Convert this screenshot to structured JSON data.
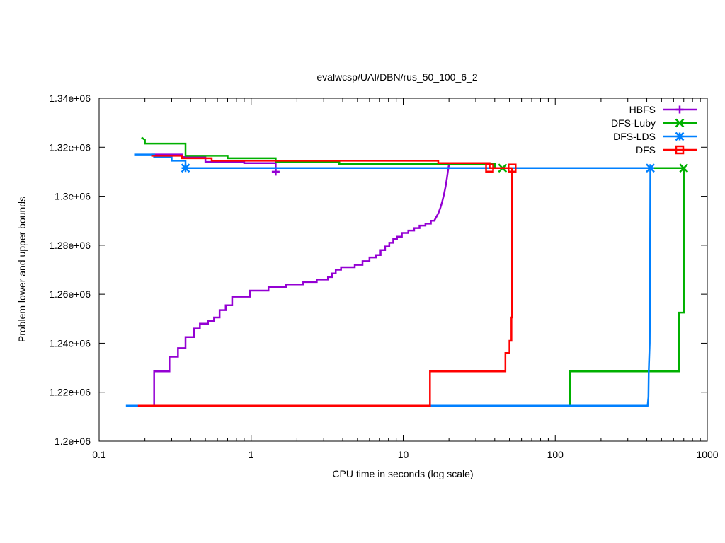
{
  "chart_data": {
    "type": "line",
    "title": "evalwcsp/UAI/DBN/rus_50_100_6_2",
    "xlabel": "CPU time in seconds (log scale)",
    "ylabel": "Problem lower and upper bounds",
    "xscale": "log",
    "xlim": [
      0.1,
      1000
    ],
    "ylim": [
      1200000,
      1340000
    ],
    "x_ticks": [
      0.1,
      1,
      10,
      100,
      1000
    ],
    "x_tick_labels": [
      "0.1",
      "1",
      "10",
      "100",
      "1000"
    ],
    "y_ticks": [
      1200000,
      1220000,
      1240000,
      1260000,
      1280000,
      1300000,
      1320000,
      1340000
    ],
    "y_tick_labels": [
      "1.2e+06",
      "1.22e+06",
      "1.24e+06",
      "1.26e+06",
      "1.28e+06",
      "1.3e+06",
      "1.32e+06",
      "1.34e+06"
    ],
    "grid": false,
    "legend_position": "top-right",
    "series": [
      {
        "name": "HBFS",
        "color": "#9400d3",
        "marker": "plus",
        "lower": [
          [
            0.175,
            1214500
          ],
          [
            0.23,
            1214500
          ],
          [
            0.23,
            1228500
          ],
          [
            0.29,
            1228500
          ],
          [
            0.29,
            1234500
          ],
          [
            0.33,
            1234500
          ],
          [
            0.33,
            1238000
          ],
          [
            0.37,
            1238000
          ],
          [
            0.37,
            1242500
          ],
          [
            0.42,
            1242500
          ],
          [
            0.42,
            1246000
          ],
          [
            0.46,
            1246000
          ],
          [
            0.46,
            1248000
          ],
          [
            0.52,
            1248000
          ],
          [
            0.52,
            1249000
          ],
          [
            0.57,
            1249000
          ],
          [
            0.57,
            1250500
          ],
          [
            0.62,
            1250500
          ],
          [
            0.62,
            1253500
          ],
          [
            0.68,
            1253500
          ],
          [
            0.68,
            1255500
          ],
          [
            0.75,
            1255500
          ],
          [
            0.75,
            1259000
          ],
          [
            0.98,
            1259000
          ],
          [
            0.98,
            1261500
          ],
          [
            1.3,
            1261500
          ],
          [
            1.3,
            1263000
          ],
          [
            1.7,
            1263000
          ],
          [
            1.7,
            1264000
          ],
          [
            2.2,
            1264000
          ],
          [
            2.2,
            1265000
          ],
          [
            2.7,
            1265000
          ],
          [
            2.7,
            1266000
          ],
          [
            3.2,
            1266000
          ],
          [
            3.2,
            1267000
          ],
          [
            3.4,
            1267000
          ],
          [
            3.4,
            1268500
          ],
          [
            3.6,
            1268500
          ],
          [
            3.6,
            1270000
          ],
          [
            3.9,
            1270000
          ],
          [
            3.9,
            1271000
          ],
          [
            4.8,
            1271000
          ],
          [
            4.8,
            1272000
          ],
          [
            5.4,
            1272000
          ],
          [
            5.4,
            1273500
          ],
          [
            6.0,
            1273500
          ],
          [
            6.0,
            1275000
          ],
          [
            6.6,
            1275000
          ],
          [
            6.6,
            1276000
          ],
          [
            7.1,
            1276000
          ],
          [
            7.1,
            1278000
          ],
          [
            7.6,
            1278000
          ],
          [
            7.6,
            1279500
          ],
          [
            8.1,
            1279500
          ],
          [
            8.1,
            1281000
          ],
          [
            8.6,
            1281000
          ],
          [
            8.6,
            1282500
          ],
          [
            9.1,
            1282500
          ],
          [
            9.1,
            1283500
          ],
          [
            9.8,
            1283500
          ],
          [
            9.8,
            1285000
          ],
          [
            10.8,
            1285000
          ],
          [
            10.8,
            1286000
          ],
          [
            11.8,
            1286000
          ],
          [
            11.8,
            1287000
          ],
          [
            12.8,
            1287000
          ],
          [
            12.8,
            1288000
          ],
          [
            14.0,
            1288000
          ],
          [
            14.0,
            1288800
          ],
          [
            15.2,
            1288800
          ],
          [
            15.2,
            1290000
          ],
          [
            16.0,
            1290000
          ],
          [
            16.5,
            1291500
          ],
          [
            17.0,
            1293000
          ],
          [
            17.5,
            1295000
          ],
          [
            18.0,
            1297500
          ],
          [
            18.5,
            1300500
          ],
          [
            19.0,
            1304000
          ],
          [
            19.4,
            1307500
          ],
          [
            19.8,
            1311500
          ],
          [
            20.1,
            1313500
          ]
        ],
        "upper": [
          [
            0.22,
            1317000
          ],
          [
            0.35,
            1317000
          ],
          [
            0.35,
            1316000
          ],
          [
            0.5,
            1316000
          ],
          [
            0.5,
            1314000
          ],
          [
            0.9,
            1314000
          ],
          [
            0.9,
            1313500
          ],
          [
            1.45,
            1313500
          ],
          [
            1.45,
            1310000
          ]
        ]
      },
      {
        "name": "DFS-Luby",
        "color": "#00b000",
        "marker": "cross",
        "lower": [
          [
            0.175,
            1214500
          ],
          [
            125,
            1214500
          ],
          [
            125,
            1228500
          ],
          [
            650,
            1228500
          ],
          [
            650,
            1252500
          ],
          [
            700,
            1252500
          ],
          [
            700,
            1311500
          ]
        ],
        "upper": [
          [
            0.19,
            1324000
          ],
          [
            0.2,
            1323000
          ],
          [
            0.2,
            1321500
          ],
          [
            0.37,
            1321500
          ],
          [
            0.37,
            1316500
          ],
          [
            0.7,
            1316500
          ],
          [
            0.7,
            1315500
          ],
          [
            1.45,
            1315500
          ],
          [
            1.45,
            1313800
          ],
          [
            3.8,
            1313800
          ],
          [
            3.8,
            1313200
          ],
          [
            40,
            1313200
          ],
          [
            40,
            1311500
          ],
          [
            700,
            1311500
          ]
        ]
      },
      {
        "name": "DFS-LDS",
        "color": "#0080ff",
        "marker": "star",
        "lower": [
          [
            0.15,
            1214500
          ],
          [
            405,
            1214500
          ],
          [
            410,
            1218000
          ],
          [
            412,
            1228500
          ],
          [
            418,
            1240000
          ],
          [
            420,
            1264000
          ],
          [
            422,
            1311500
          ]
        ],
        "upper": [
          [
            0.17,
            1317000
          ],
          [
            0.23,
            1317000
          ],
          [
            0.23,
            1316000
          ],
          [
            0.3,
            1316000
          ],
          [
            0.3,
            1314500
          ],
          [
            0.37,
            1314500
          ],
          [
            0.37,
            1311500
          ],
          [
            420,
            1311500
          ]
        ]
      },
      {
        "name": "DFS",
        "color": "#ff0000",
        "marker": "square",
        "lower": [
          [
            0.18,
            1214500
          ],
          [
            15,
            1214500
          ],
          [
            15,
            1228500
          ],
          [
            47,
            1228500
          ],
          [
            47,
            1236000
          ],
          [
            50,
            1236000
          ],
          [
            50,
            1241000
          ],
          [
            51.5,
            1241000
          ],
          [
            51.5,
            1250500
          ],
          [
            52,
            1250500
          ],
          [
            52,
            1311500
          ]
        ],
        "upper": [
          [
            0.22,
            1316500
          ],
          [
            0.35,
            1316500
          ],
          [
            0.35,
            1315500
          ],
          [
            0.55,
            1315500
          ],
          [
            0.55,
            1314500
          ],
          [
            17,
            1314500
          ],
          [
            17,
            1313500
          ],
          [
            37,
            1313500
          ],
          [
            37,
            1311500
          ],
          [
            52,
            1311500
          ]
        ]
      }
    ]
  }
}
